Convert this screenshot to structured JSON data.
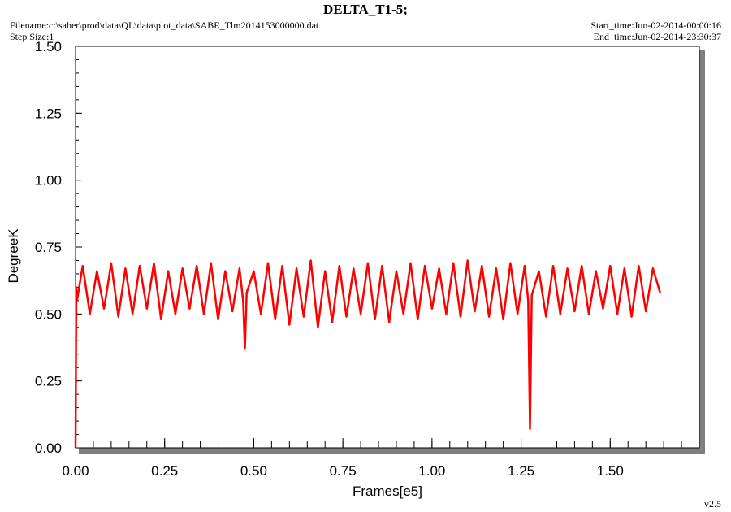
{
  "header": {
    "title": "DELTA_T1-5;",
    "filename": "Filename:c:\\saber\\prod\\data\\QL\\data\\plot_data\\SABE_Tlm2014153000000.dat",
    "step_size": "Step Size:1",
    "start_time": "Start_time:Jun-02-2014-00:00:16",
    "end_time": "End_time:Jun-02-2014-23:30:37"
  },
  "footer": {
    "version": "v2.5"
  },
  "colors": {
    "series": "#ff0000",
    "frame": "#000000",
    "shadow": "#808080"
  },
  "chart_data": {
    "type": "line",
    "title": "DELTA_T1-5;",
    "xlabel": "Frames[e5]",
    "ylabel": "DegreeK",
    "xlim": [
      0,
      1.75
    ],
    "ylim": [
      0,
      1.5
    ],
    "x_ticks": [
      "0.00",
      "0.25",
      "0.50",
      "0.75",
      "1.00",
      "1.25",
      "1.50"
    ],
    "y_ticks": [
      "0.00",
      "0.25",
      "0.50",
      "0.75",
      "1.00",
      "1.25",
      "1.50"
    ],
    "grid": false,
    "series": [
      {
        "x": [
          0.0,
          0.002,
          0.004,
          0.02,
          0.04,
          0.06,
          0.08,
          0.1,
          0.12,
          0.14,
          0.16,
          0.18,
          0.2,
          0.22,
          0.24,
          0.26,
          0.28,
          0.3,
          0.32,
          0.34,
          0.36,
          0.38,
          0.4,
          0.42,
          0.44,
          0.46,
          0.47,
          0.475,
          0.48,
          0.5,
          0.52,
          0.54,
          0.56,
          0.58,
          0.6,
          0.62,
          0.64,
          0.66,
          0.68,
          0.7,
          0.72,
          0.74,
          0.76,
          0.78,
          0.8,
          0.82,
          0.84,
          0.86,
          0.88,
          0.9,
          0.92,
          0.94,
          0.96,
          0.98,
          1.0,
          1.02,
          1.04,
          1.06,
          1.08,
          1.1,
          1.12,
          1.14,
          1.16,
          1.18,
          1.2,
          1.22,
          1.24,
          1.26,
          1.27,
          1.275,
          1.28,
          1.3,
          1.32,
          1.34,
          1.36,
          1.38,
          1.4,
          1.42,
          1.44,
          1.46,
          1.48,
          1.5,
          1.52,
          1.54,
          1.56,
          1.58,
          1.6,
          1.62,
          1.64
        ],
        "y": [
          0.0,
          0.6,
          0.55,
          0.68,
          0.5,
          0.66,
          0.52,
          0.69,
          0.49,
          0.67,
          0.5,
          0.68,
          0.52,
          0.69,
          0.48,
          0.66,
          0.5,
          0.67,
          0.52,
          0.68,
          0.5,
          0.69,
          0.48,
          0.66,
          0.51,
          0.67,
          0.55,
          0.37,
          0.58,
          0.66,
          0.5,
          0.69,
          0.48,
          0.68,
          0.46,
          0.67,
          0.49,
          0.7,
          0.45,
          0.66,
          0.47,
          0.68,
          0.49,
          0.67,
          0.5,
          0.69,
          0.48,
          0.68,
          0.47,
          0.66,
          0.5,
          0.69,
          0.48,
          0.68,
          0.52,
          0.67,
          0.5,
          0.69,
          0.49,
          0.7,
          0.51,
          0.68,
          0.49,
          0.67,
          0.48,
          0.69,
          0.5,
          0.68,
          0.55,
          0.07,
          0.57,
          0.66,
          0.49,
          0.68,
          0.5,
          0.67,
          0.51,
          0.68,
          0.5,
          0.66,
          0.52,
          0.68,
          0.5,
          0.67,
          0.49,
          0.68,
          0.51,
          0.67,
          0.58
        ]
      }
    ]
  }
}
